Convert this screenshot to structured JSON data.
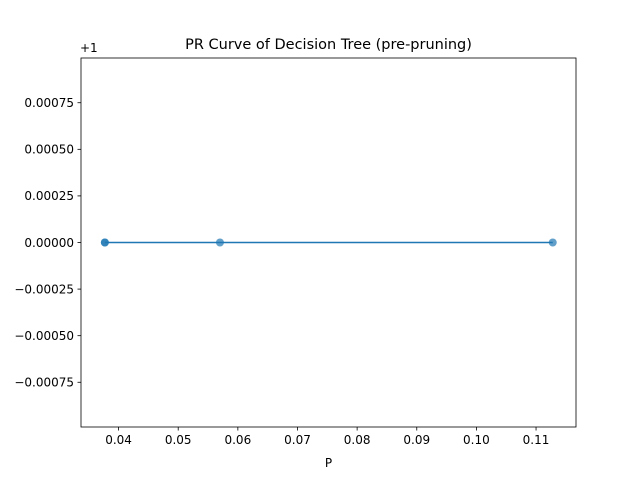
{
  "chart_data": {
    "type": "line",
    "title": "PR Curve of Decision Tree (pre-pruning)",
    "xlabel": "P",
    "ylabel": "",
    "y_offset_label": "+1",
    "y_offset": 1,
    "xlim": [
      0.0337,
      0.1167
    ],
    "ylim": [
      -0.00099,
      0.00099
    ],
    "x_ticks": [
      0.04,
      0.05,
      0.06,
      0.07,
      0.08,
      0.09,
      0.1,
      0.11
    ],
    "x_tick_labels": [
      "0.04",
      "0.05",
      "0.06",
      "0.07",
      "0.08",
      "0.09",
      "0.10",
      "0.11"
    ],
    "y_ticks": [
      0.00075,
      0.0005,
      0.00025,
      0.0,
      -0.00025,
      -0.0005,
      -0.00075
    ],
    "y_tick_labels": [
      "0.00075",
      "0.00050",
      "0.00025",
      "0.00000",
      "−0.00025",
      "−0.00050",
      "−0.00075"
    ],
    "grid": false,
    "series": [
      {
        "x": [
          0.0377,
          0.0377,
          0.057,
          0.1128
        ],
        "y": [
          1.0,
          1.0,
          1.0,
          1.0
        ],
        "color": "#1f77b4",
        "markers": true
      }
    ]
  }
}
